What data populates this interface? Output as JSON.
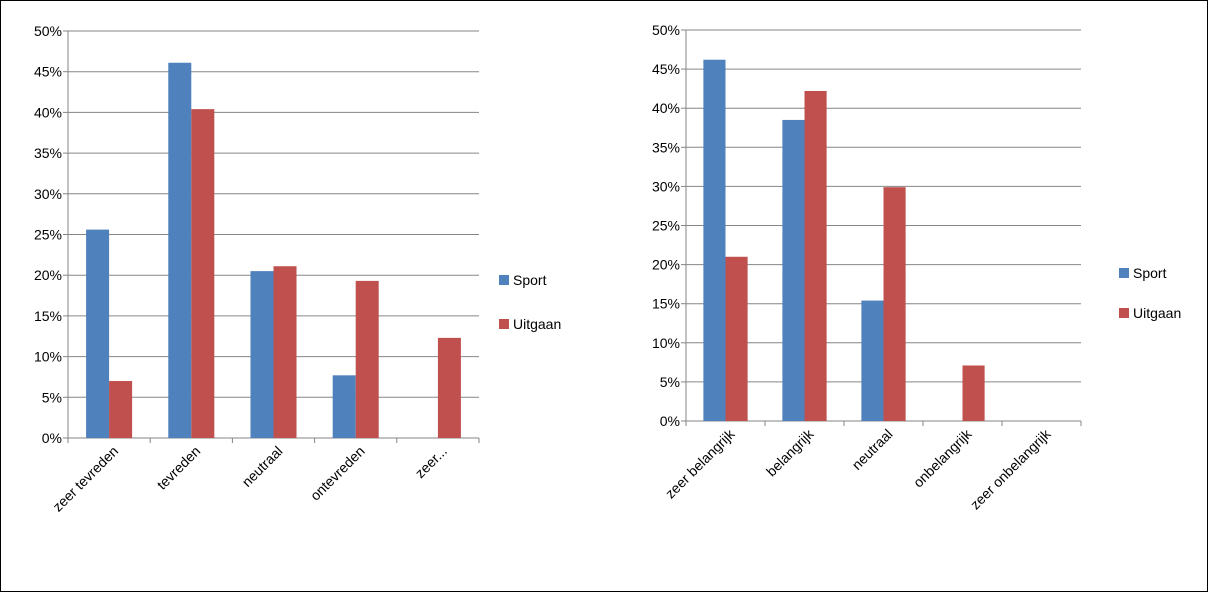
{
  "chart_data": [
    {
      "type": "bar",
      "categories": [
        "zeer tevreden",
        "tevreden",
        "neutraal",
        "ontevreden",
        "zeer..."
      ],
      "series": [
        {
          "name": "Sport",
          "values": [
            25.6,
            46.1,
            20.5,
            7.7,
            0
          ]
        },
        {
          "name": "Uitgaan",
          "values": [
            7.0,
            40.4,
            21.1,
            19.3,
            12.3
          ]
        }
      ],
      "y_ticks": [
        "0%",
        "5%",
        "10%",
        "15%",
        "20%",
        "25%",
        "30%",
        "35%",
        "40%",
        "45%",
        "50%"
      ],
      "ylim": [
        0,
        50
      ],
      "grid": true,
      "legend_position": "right",
      "colors": [
        "#4f81bd",
        "#c0504d"
      ]
    },
    {
      "type": "bar",
      "categories": [
        "zeer belangrijk",
        "belangrijk",
        "neutraal",
        "onbelangrijk",
        "zeer onbelangrijk"
      ],
      "series": [
        {
          "name": "Sport",
          "values": [
            46.2,
            38.5,
            15.4,
            0,
            0
          ]
        },
        {
          "name": "Uitgaan",
          "values": [
            21.0,
            42.2,
            29.9,
            7.1,
            0
          ]
        }
      ],
      "y_ticks": [
        "0%",
        "5%",
        "10%",
        "15%",
        "20%",
        "25%",
        "30%",
        "35%",
        "40%",
        "45%",
        "50%"
      ],
      "ylim": [
        0,
        50
      ],
      "grid": true,
      "legend_position": "right",
      "colors": [
        "#4f81bd",
        "#c0504d"
      ]
    }
  ]
}
